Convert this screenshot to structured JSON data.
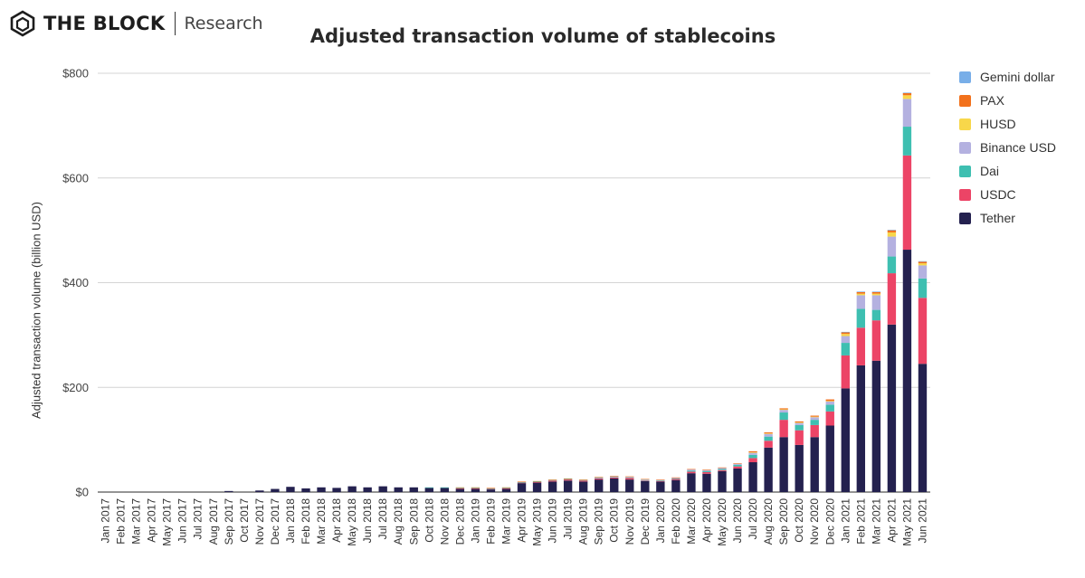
{
  "header": {
    "brand_name": "THE BLOCK",
    "brand_sub": "Research"
  },
  "chart_data": {
    "type": "bar",
    "stacked": true,
    "title": "Adjusted transaction volume of stablecoins",
    "xlabel": "",
    "ylabel": "Adjusted transaction volume (billion USD)",
    "ylim": [
      0,
      800
    ],
    "yticks": [
      0,
      200,
      400,
      600,
      800
    ],
    "ytick_labels": [
      "$0",
      "$200",
      "$400",
      "$600",
      "$800"
    ],
    "grid": true,
    "legend_position": "right",
    "categories": [
      "Jan 2017",
      "Feb 2017",
      "Mar 2017",
      "Apr 2017",
      "May 2017",
      "Jun 2017",
      "Jul 2017",
      "Aug 2017",
      "Sep 2017",
      "Oct 2017",
      "Nov 2017",
      "Dec 2017",
      "Jan 2018",
      "Feb 2018",
      "Mar 2018",
      "Apr 2018",
      "May 2018",
      "Jun 2018",
      "Jul 2018",
      "Aug 2018",
      "Sep 2018",
      "Oct 2018",
      "Nov 2018",
      "Dec 2018",
      "Jan 2019",
      "Feb 2019",
      "Mar 2019",
      "Apr 2019",
      "May 2019",
      "Jun 2019",
      "Jul 2019",
      "Aug 2019",
      "Sep 2019",
      "Oct 2019",
      "Nov 2019",
      "Dec 2019",
      "Jan 2020",
      "Feb 2020",
      "Mar 2020",
      "Apr 2020",
      "May 2020",
      "Jun 2020",
      "Jul 2020",
      "Aug 2020",
      "Sep 2020",
      "Oct 2020",
      "Nov 2020",
      "Dec 2020",
      "Jan 2021",
      "Feb 2021",
      "Mar 2021",
      "Apr 2021",
      "May 2021",
      "Jun 2021"
    ],
    "series": [
      {
        "name": "Tether",
        "color": "#24214f",
        "values": [
          0,
          0,
          0,
          0,
          0,
          0,
          0,
          0,
          2,
          0,
          3,
          6,
          10,
          7,
          9,
          8,
          11,
          9,
          11,
          9,
          9,
          8,
          8,
          6,
          6,
          5,
          6,
          17,
          18,
          20,
          22,
          20,
          24,
          26,
          24,
          21,
          20,
          23,
          36,
          35,
          40,
          45,
          57,
          85,
          105,
          90,
          105,
          127,
          198,
          242,
          251,
          320,
          463,
          245
        ]
      },
      {
        "name": "USDC",
        "color": "#ec4466",
        "values": [
          0,
          0,
          0,
          0,
          0,
          0,
          0,
          0,
          0,
          0,
          0,
          0,
          0,
          0,
          0,
          0,
          0,
          0,
          0,
          0,
          0,
          0,
          0,
          1,
          1,
          1,
          1,
          1,
          1,
          2,
          2,
          2,
          2,
          2,
          3,
          1,
          1,
          2,
          3,
          3,
          2,
          4,
          8,
          13,
          33,
          28,
          23,
          27,
          63,
          72,
          77,
          98,
          180,
          126
        ]
      },
      {
        "name": "Dai",
        "color": "#3ebfb1",
        "values": [
          0,
          0,
          0,
          0,
          0,
          0,
          0,
          0,
          0,
          0,
          0,
          0,
          0,
          0,
          0,
          0,
          0,
          0,
          0,
          0,
          0,
          1,
          1,
          1,
          1,
          1,
          1,
          1,
          1,
          1,
          1,
          1,
          1,
          1,
          1,
          1,
          1,
          1,
          2,
          2,
          2,
          3,
          6,
          8,
          14,
          10,
          10,
          13,
          24,
          36,
          20,
          32,
          55,
          37
        ]
      },
      {
        "name": "Binance USD",
        "color": "#b4b1e0",
        "values": [
          0,
          0,
          0,
          0,
          0,
          0,
          0,
          0,
          0,
          0,
          0,
          0,
          0,
          0,
          0,
          0,
          0,
          0,
          0,
          0,
          0,
          0,
          0,
          0,
          0,
          0,
          0,
          0,
          0,
          0,
          0,
          0,
          1,
          1,
          1,
          1,
          1,
          1,
          2,
          2,
          2,
          2,
          4,
          5,
          5,
          4,
          5,
          6,
          13,
          26,
          28,
          38,
          53,
          25
        ]
      },
      {
        "name": "HUSD",
        "color": "#f8d74a",
        "values": [
          0,
          0,
          0,
          0,
          0,
          0,
          0,
          0,
          0,
          0,
          0,
          0,
          0,
          0,
          0,
          0,
          0,
          0,
          0,
          0,
          0,
          0,
          0,
          0,
          0,
          0,
          0,
          0,
          0,
          0,
          0,
          0,
          0,
          0,
          0,
          0,
          0,
          0,
          0,
          0,
          0,
          0,
          1,
          1,
          1,
          1,
          1,
          1,
          4,
          3,
          3,
          8,
          7,
          4
        ]
      },
      {
        "name": "PAX",
        "color": "#f2711c",
        "values": [
          0,
          0,
          0,
          0,
          0,
          0,
          0,
          0,
          0,
          0,
          0,
          0,
          0,
          0,
          0,
          0,
          0,
          0,
          0,
          0,
          0,
          0,
          0,
          1,
          1,
          1,
          1,
          1,
          1,
          1,
          1,
          1,
          1,
          1,
          1,
          1,
          1,
          1,
          1,
          1,
          1,
          1,
          2,
          2,
          2,
          2,
          2,
          3,
          3,
          3,
          3,
          4,
          4,
          3
        ]
      },
      {
        "name": "Gemini dollar",
        "color": "#78aee8",
        "values": [
          0,
          0,
          0,
          0,
          0,
          0,
          0,
          0,
          0,
          0,
          0,
          0,
          0,
          0,
          0,
          0,
          0,
          0,
          0,
          0,
          0,
          0,
          0,
          0,
          0,
          0,
          0,
          0,
          0,
          0,
          0,
          0,
          0,
          0,
          0,
          0,
          0,
          0,
          0,
          0,
          0,
          0,
          0,
          0,
          0,
          0,
          0,
          0,
          1,
          1,
          1,
          1,
          1,
          1
        ]
      }
    ]
  }
}
